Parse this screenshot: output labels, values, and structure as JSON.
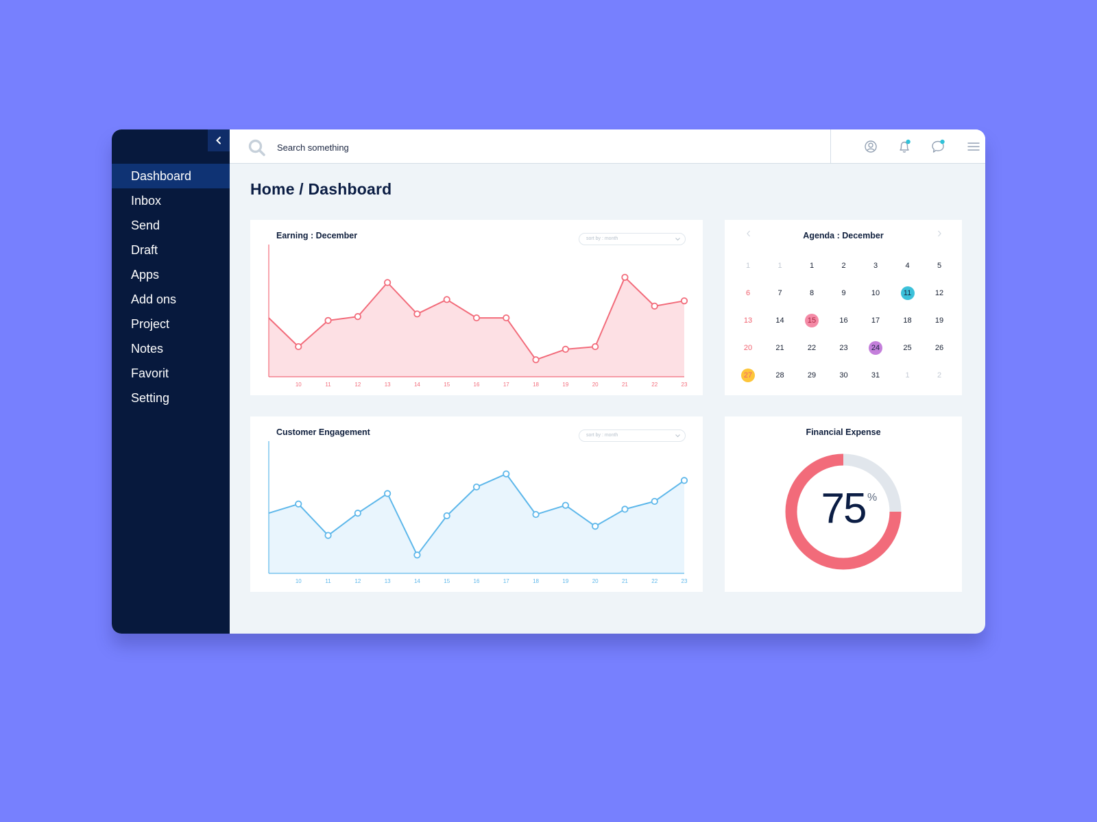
{
  "search": {
    "placeholder": "Search something"
  },
  "sidebar": {
    "items": [
      {
        "label": "Dashboard",
        "active": true
      },
      {
        "label": "Inbox"
      },
      {
        "label": "Send"
      },
      {
        "label": "Draft"
      },
      {
        "label": "Apps"
      },
      {
        "label": "Add ons"
      },
      {
        "label": "Project"
      },
      {
        "label": "Notes"
      },
      {
        "label": "Favorit"
      },
      {
        "label": "Setting"
      }
    ]
  },
  "page": {
    "title": "Home / Dashboard"
  },
  "colors": {
    "earning": "#f26b7a",
    "earning_fill": "#fde0e4",
    "engagement": "#5db7ea",
    "engagement_fill": "#e9f5fd",
    "badge": "#30c2d9",
    "today_cyan": "#3cc1da",
    "pink": "#f48aa6",
    "purple": "#c47fdb",
    "yellow": "#fdc53a",
    "donut_track": "#e1e6ec"
  },
  "earning": {
    "title": "Earning : December",
    "sort_label": "sort by : month"
  },
  "engagement": {
    "title": "Customer Engagement",
    "sort_label": "sort by : month"
  },
  "agenda": {
    "title": "Agenda : December",
    "prev_icon": "chevron-left-icon",
    "next_icon": "chevron-right-icon",
    "days": [
      {
        "d": "1",
        "muted": true
      },
      {
        "d": "1",
        "muted": true
      },
      {
        "d": "1"
      },
      {
        "d": "2"
      },
      {
        "d": "3"
      },
      {
        "d": "4"
      },
      {
        "d": "5"
      },
      {
        "d": "6",
        "weekend": true
      },
      {
        "d": "7"
      },
      {
        "d": "8"
      },
      {
        "d": "9"
      },
      {
        "d": "10"
      },
      {
        "d": "11",
        "mark": "today_cyan"
      },
      {
        "d": "12"
      },
      {
        "d": "13",
        "weekend": true
      },
      {
        "d": "14"
      },
      {
        "d": "15",
        "mark": "pink"
      },
      {
        "d": "16"
      },
      {
        "d": "17"
      },
      {
        "d": "18"
      },
      {
        "d": "19"
      },
      {
        "d": "20",
        "weekend": true
      },
      {
        "d": "21"
      },
      {
        "d": "22"
      },
      {
        "d": "23"
      },
      {
        "d": "24",
        "mark": "purple"
      },
      {
        "d": "25"
      },
      {
        "d": "26"
      },
      {
        "d": "27",
        "mark": "yellow"
      },
      {
        "d": "28"
      },
      {
        "d": "29"
      },
      {
        "d": "30"
      },
      {
        "d": "31"
      },
      {
        "d": "1",
        "muted": true
      },
      {
        "d": "2",
        "muted": true
      }
    ]
  },
  "financial": {
    "title": "Financial Expense",
    "value": "75",
    "unit": "%",
    "percent": 75
  },
  "chart_data": [
    {
      "type": "area",
      "title": "Earning : December",
      "categories": [
        "",
        "10",
        "11",
        "12",
        "13",
        "14",
        "15",
        "16",
        "17",
        "18",
        "19",
        "20",
        "21",
        "22",
        "23"
      ],
      "values": [
        45,
        23,
        43,
        46,
        72,
        48,
        59,
        45,
        45,
        13,
        21,
        23,
        76,
        54,
        58
      ],
      "ylim": [
        0,
        100
      ]
    },
    {
      "type": "area",
      "title": "Customer Engagement",
      "categories": [
        "",
        "10",
        "11",
        "12",
        "13",
        "14",
        "15",
        "16",
        "17",
        "18",
        "19",
        "20",
        "21",
        "22",
        "23"
      ],
      "values": [
        46,
        53,
        29,
        46,
        61,
        14,
        44,
        66,
        76,
        45,
        52,
        36,
        49,
        55,
        71
      ],
      "ylim": [
        0,
        100
      ]
    }
  ]
}
